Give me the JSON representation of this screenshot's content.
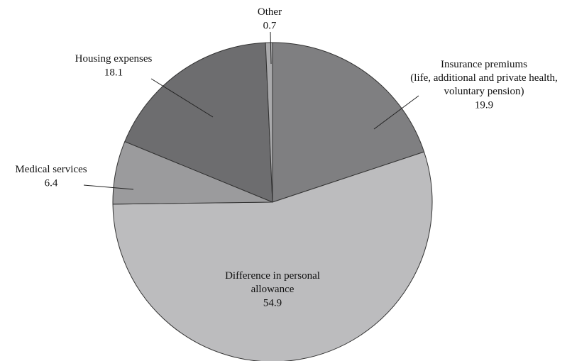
{
  "chart_data": {
    "type": "pie",
    "categories": [
      "Insurance premiums\n(life, additional and private health,\nvoluntary pension)",
      "Difference in personal\nallowance",
      "Medical services",
      "Housing expenses",
      "Other"
    ],
    "values": [
      19.9,
      54.9,
      6.4,
      18.1,
      0.7
    ],
    "colors": [
      "#7f7f81",
      "#bcbcbe",
      "#9b9b9d",
      "#6d6d6f",
      "#a9a9ab"
    ]
  }
}
